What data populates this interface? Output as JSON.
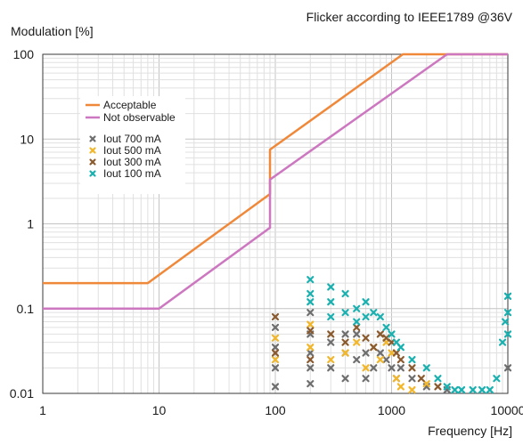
{
  "chart_data": {
    "type": "line",
    "title": "Flicker according to IEEE1789 @36V",
    "xlabel": "Frequency [Hz]",
    "ylabel": "Modulation [%]",
    "xscale": "log",
    "yscale": "log",
    "xlim": [
      1,
      10000
    ],
    "ylim": [
      0.01,
      100
    ],
    "x_ticks": [
      "1",
      "10",
      "100",
      "1000",
      "10000"
    ],
    "y_ticks": [
      "0.01",
      "0.1",
      "1",
      "10",
      "100"
    ],
    "grid": true,
    "legend_position": "top-left",
    "series": [
      {
        "name": "Acceptable",
        "kind": "line",
        "color": "#f0883a",
        "points": [
          [
            1,
            0.2
          ],
          [
            8,
            0.2
          ],
          [
            90,
            2.25
          ],
          [
            90,
            7.5
          ],
          [
            1250,
            100
          ],
          [
            10000,
            100
          ]
        ]
      },
      {
        "name": "Not observable",
        "kind": "line",
        "color": "#cc77c0",
        "points": [
          [
            1,
            0.1
          ],
          [
            10,
            0.1
          ],
          [
            90,
            0.9
          ],
          [
            90,
            3.33
          ],
          [
            3000,
            100
          ],
          [
            10000,
            100
          ]
        ]
      },
      {
        "name": "Iout 700 mA",
        "kind": "scatter",
        "color": "#6e6e6e",
        "points": [
          [
            100,
            0.06
          ],
          [
            100,
            0.035
          ],
          [
            100,
            0.02
          ],
          [
            100,
            0.012
          ],
          [
            200,
            0.09
          ],
          [
            200,
            0.05
          ],
          [
            200,
            0.03
          ],
          [
            200,
            0.02
          ],
          [
            200,
            0.013
          ],
          [
            300,
            0.04
          ],
          [
            300,
            0.02
          ],
          [
            400,
            0.05
          ],
          [
            400,
            0.03
          ],
          [
            400,
            0.015
          ],
          [
            500,
            0.05
          ],
          [
            500,
            0.025
          ],
          [
            600,
            0.03
          ],
          [
            600,
            0.015
          ],
          [
            700,
            0.02
          ],
          [
            800,
            0.03
          ],
          [
            900,
            0.025
          ],
          [
            1000,
            0.02
          ],
          [
            1100,
            0.015
          ],
          [
            1200,
            0.02
          ],
          [
            1500,
            0.015
          ],
          [
            2000,
            0.012
          ],
          [
            3000,
            0.011
          ],
          [
            10000,
            0.02
          ]
        ]
      },
      {
        "name": "Iout 500 mA",
        "kind": "scatter",
        "color": "#f2b62a",
        "points": [
          [
            100,
            0.045
          ],
          [
            100,
            0.025
          ],
          [
            200,
            0.065
          ],
          [
            200,
            0.035
          ],
          [
            300,
            0.025
          ],
          [
            400,
            0.03
          ],
          [
            500,
            0.04
          ],
          [
            600,
            0.02
          ],
          [
            700,
            0.035
          ],
          [
            800,
            0.025
          ],
          [
            900,
            0.04
          ],
          [
            1000,
            0.03
          ],
          [
            1100,
            0.015
          ],
          [
            1200,
            0.012
          ],
          [
            1500,
            0.011
          ],
          [
            2000,
            0.013
          ]
        ]
      },
      {
        "name": "Iout 300 mA",
        "kind": "scatter",
        "color": "#8a5a2e",
        "points": [
          [
            100,
            0.08
          ],
          [
            100,
            0.03
          ],
          [
            200,
            0.055
          ],
          [
            200,
            0.025
          ],
          [
            300,
            0.05
          ],
          [
            400,
            0.04
          ],
          [
            500,
            0.06
          ],
          [
            600,
            0.045
          ],
          [
            700,
            0.035
          ],
          [
            800,
            0.05
          ],
          [
            900,
            0.045
          ],
          [
            1000,
            0.04
          ],
          [
            1100,
            0.03
          ],
          [
            1200,
            0.025
          ],
          [
            1500,
            0.02
          ],
          [
            1800,
            0.015
          ],
          [
            2500,
            0.012
          ]
        ]
      },
      {
        "name": "Iout 100 mA",
        "kind": "scatter",
        "color": "#1ab0b0",
        "points": [
          [
            200,
            0.22
          ],
          [
            200,
            0.15
          ],
          [
            200,
            0.12
          ],
          [
            300,
            0.18
          ],
          [
            300,
            0.12
          ],
          [
            300,
            0.08
          ],
          [
            400,
            0.15
          ],
          [
            400,
            0.09
          ],
          [
            500,
            0.1
          ],
          [
            500,
            0.07
          ],
          [
            600,
            0.12
          ],
          [
            600,
            0.08
          ],
          [
            700,
            0.09
          ],
          [
            800,
            0.08
          ],
          [
            900,
            0.06
          ],
          [
            1000,
            0.05
          ],
          [
            1100,
            0.04
          ],
          [
            1200,
            0.035
          ],
          [
            1500,
            0.025
          ],
          [
            2000,
            0.02
          ],
          [
            2500,
            0.015
          ],
          [
            3000,
            0.012
          ],
          [
            3500,
            0.011
          ],
          [
            4000,
            0.011
          ],
          [
            5000,
            0.011
          ],
          [
            6000,
            0.011
          ],
          [
            7000,
            0.011
          ],
          [
            8000,
            0.015
          ],
          [
            9000,
            0.04
          ],
          [
            9500,
            0.07
          ],
          [
            10000,
            0.14
          ],
          [
            10000,
            0.09
          ],
          [
            10000,
            0.05
          ]
        ]
      }
    ]
  }
}
